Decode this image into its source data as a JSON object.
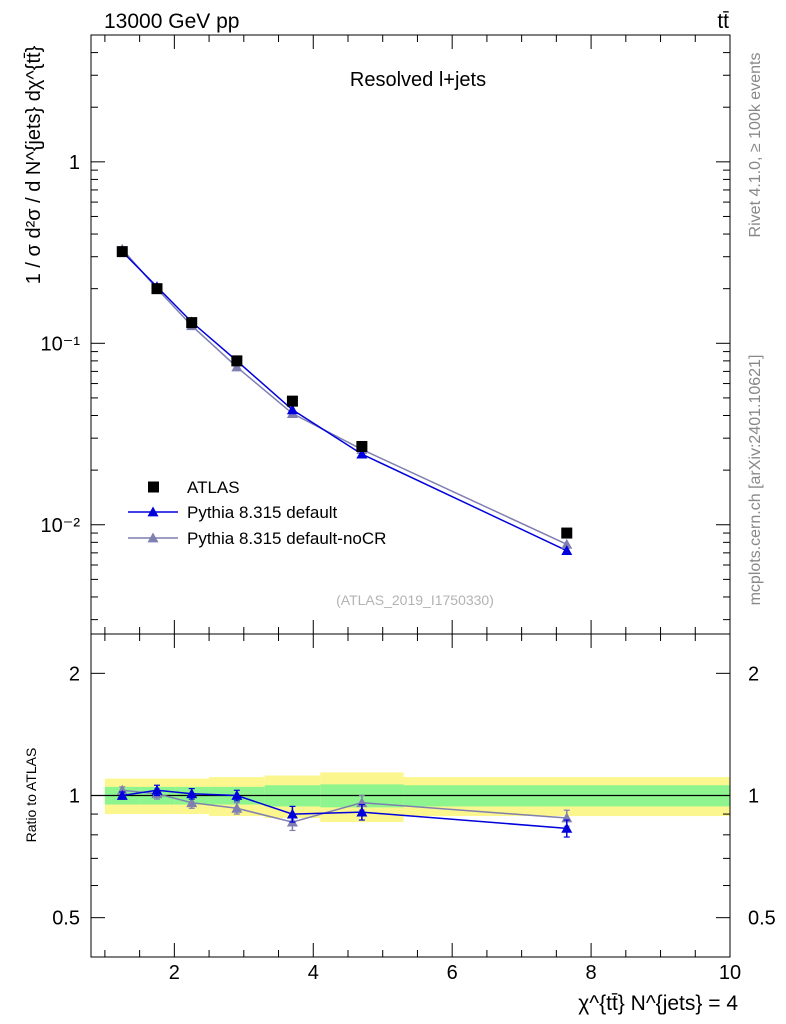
{
  "header": {
    "energy_label": "13000 GeV pp",
    "process_label": "tt̄"
  },
  "side_labels": {
    "rivet": "Rivet 4.1.0, ≥ 100k events",
    "mcplots": "mcplots.cern.ch [arXiv:2401.10621]"
  },
  "colors": {
    "data": "#000000",
    "default": "#0000dd",
    "nocr": "#7f7fb2",
    "band_inner": "#8ef58e",
    "band_outer": "#fbf68e"
  },
  "chart_data": [
    {
      "type": "line",
      "title": "Resolved l+jets",
      "analysis_id": "(ATLAS_2019_I1750330)",
      "ylabel": "1 / σ d²σ / d N^{jets} dχ^{tt̄}",
      "yscale": "log",
      "ylim": [
        0.0025,
        5
      ],
      "xlim": [
        0.8,
        10
      ],
      "y_ticks": [
        {
          "value": 1,
          "label": "1"
        },
        {
          "value": 0.1,
          "label": "10⁻¹"
        },
        {
          "value": 0.01,
          "label": "10⁻²"
        }
      ],
      "legend": {
        "position": "bottom-left",
        "entries": [
          "ATLAS",
          "Pythia 8.315 default",
          "Pythia 8.315 default-noCR"
        ]
      },
      "series": [
        {
          "name": "ATLAS",
          "marker": "square",
          "x": [
            1.25,
            1.75,
            2.25,
            2.9,
            3.7,
            4.7,
            7.65
          ],
          "values": [
            0.32,
            0.2,
            0.13,
            0.08,
            0.048,
            0.027,
            0.009
          ]
        },
        {
          "name": "Pythia 8.315 default",
          "marker": "triangle",
          "x": [
            1.25,
            1.75,
            2.25,
            2.9,
            3.7,
            4.7,
            7.65
          ],
          "values": [
            0.32,
            0.205,
            0.131,
            0.08,
            0.043,
            0.0245,
            0.0072
          ]
        },
        {
          "name": "Pythia 8.315 default-noCR",
          "marker": "triangle",
          "x": [
            1.25,
            1.75,
            2.25,
            2.9,
            3.7,
            4.7,
            7.65
          ],
          "values": [
            0.33,
            0.2,
            0.125,
            0.074,
            0.041,
            0.026,
            0.0078
          ]
        }
      ]
    },
    {
      "type": "line",
      "ylabel": "Ratio to ATLAS",
      "xlabel": "χ^{tt̄} N^{jets} = 4",
      "xlim": [
        0.8,
        10
      ],
      "ylim": [
        0.4,
        2.5
      ],
      "x_ticks": [
        {
          "value": 2,
          "label": "2"
        },
        {
          "value": 4,
          "label": "4"
        },
        {
          "value": 6,
          "label": "6"
        },
        {
          "value": 8,
          "label": "8"
        },
        {
          "value": 10,
          "label": "10"
        }
      ],
      "y_ticks": [
        {
          "value": 0.5,
          "label": "0.5"
        },
        {
          "value": 1,
          "label": "1"
        },
        {
          "value": 2,
          "label": "2"
        }
      ],
      "bands": {
        "bins": [
          1,
          1.5,
          2,
          2.5,
          3.3,
          4.1,
          5.3,
          10
        ],
        "inner": [
          0.05,
          0.05,
          0.05,
          0.05,
          0.06,
          0.065,
          0.06
        ],
        "outer": [
          0.1,
          0.1,
          0.1,
          0.11,
          0.12,
          0.14,
          0.11
        ]
      },
      "series": [
        {
          "name": "Pythia 8.315 default",
          "x": [
            1.25,
            1.75,
            2.25,
            2.9,
            3.7,
            4.7,
            7.65
          ],
          "values": [
            1.0,
            1.03,
            1.01,
            1.0,
            0.9,
            0.91,
            0.83
          ],
          "errors": [
            0.02,
            0.03,
            0.03,
            0.03,
            0.04,
            0.04,
            0.04
          ]
        },
        {
          "name": "Pythia 8.315 default-noCR",
          "x": [
            1.25,
            1.75,
            2.25,
            2.9,
            3.7,
            4.7,
            7.65
          ],
          "values": [
            1.03,
            1.01,
            0.96,
            0.93,
            0.86,
            0.96,
            0.88
          ],
          "errors": [
            0.02,
            0.03,
            0.03,
            0.03,
            0.04,
            0.04,
            0.04
          ]
        }
      ]
    }
  ]
}
